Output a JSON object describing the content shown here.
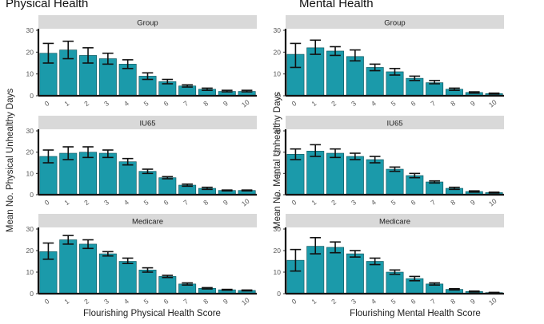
{
  "figure": {
    "left_title": "Physical Health",
    "right_title": "Mental Health",
    "left_ylabel": "Mean No. Physical Unhealthy Days",
    "right_ylabel": "Mean No. Mental Unhealthy Days",
    "left_xlabel": "Flourishing Physical Health Score",
    "right_xlabel": "Flourishing Mental Health Score",
    "bar_color": "#1b9aaa",
    "strip_color": "#d9d9d9"
  },
  "chart_data": [
    {
      "type": "bar",
      "column": "Physical Health",
      "facet": "Group",
      "categories": [
        "0",
        "1",
        "2",
        "3",
        "4",
        "5",
        "6",
        "7",
        "8",
        "9",
        "10"
      ],
      "values": [
        19.5,
        21,
        18.5,
        17,
        14.5,
        9,
        6.5,
        4.5,
        3,
        2,
        2
      ],
      "error_low": [
        15,
        17,
        15,
        14.5,
        12.5,
        7.5,
        5.5,
        4,
        2.5,
        1.8,
        1.8
      ],
      "error_high": [
        24,
        25,
        22,
        19.5,
        16.5,
        10.5,
        7.5,
        5,
        3.5,
        2.5,
        2.5
      ],
      "ylim": [
        0,
        30
      ],
      "yticks": [
        0,
        10,
        20,
        30
      ],
      "xlabel": "Flourishing Physical Health Score",
      "ylabel": "Mean No. Physical Unhealthy Days"
    },
    {
      "type": "bar",
      "column": "Physical Health",
      "facet": "IU65",
      "categories": [
        "0",
        "1",
        "2",
        "3",
        "4",
        "5",
        "6",
        "7",
        "8",
        "9",
        "10"
      ],
      "values": [
        18,
        19.5,
        20,
        19.5,
        15.5,
        11,
        8,
        4.5,
        3,
        2,
        2
      ],
      "error_low": [
        15,
        16.5,
        17.5,
        17.5,
        14,
        10,
        7.5,
        4,
        2.5,
        1.8,
        1.8
      ],
      "error_high": [
        21,
        22.5,
        22.5,
        21,
        17,
        12,
        8.5,
        5,
        3.5,
        2.2,
        2.2
      ],
      "ylim": [
        0,
        30
      ],
      "yticks": [
        0,
        10,
        20,
        30
      ],
      "xlabel": "Flourishing Physical Health Score",
      "ylabel": "Mean No. Physical Unhealthy Days"
    },
    {
      "type": "bar",
      "column": "Physical Health",
      "facet": "Medicare",
      "categories": [
        "0",
        "1",
        "2",
        "3",
        "4",
        "5",
        "6",
        "7",
        "8",
        "9",
        "10"
      ],
      "values": [
        19.5,
        25,
        23,
        18.5,
        15,
        11,
        8,
        4.5,
        2.5,
        1.8,
        1.5
      ],
      "error_low": [
        16,
        23,
        21,
        17.5,
        14,
        10,
        7.5,
        4,
        2.2,
        1.6,
        1.3
      ],
      "error_high": [
        23.5,
        27,
        25,
        19.5,
        16.5,
        12,
        8.5,
        5,
        2.8,
        2,
        1.7
      ],
      "ylim": [
        0,
        30
      ],
      "yticks": [
        0,
        10,
        20,
        30
      ],
      "xlabel": "Flourishing Physical Health Score",
      "ylabel": "Mean No. Physical Unhealthy Days"
    },
    {
      "type": "bar",
      "column": "Mental Health",
      "facet": "Group",
      "categories": [
        "0",
        "1",
        "2",
        "3",
        "4",
        "5",
        "6",
        "7",
        "8",
        "9",
        "10"
      ],
      "values": [
        19,
        22,
        20.5,
        18,
        13,
        11,
        8,
        6,
        3,
        1.5,
        1
      ],
      "error_low": [
        13,
        19,
        18.5,
        16,
        11.5,
        9.5,
        7,
        5.5,
        2.5,
        1.2,
        0.8
      ],
      "error_high": [
        24,
        25.5,
        22.5,
        21,
        14.5,
        12.5,
        9,
        7,
        3.5,
        1.8,
        1.2
      ],
      "ylim": [
        0,
        30
      ],
      "yticks": [
        0,
        10,
        20,
        30
      ],
      "xlabel": "Flourishing Mental Health Score",
      "ylabel": "Mean No. Mental Unhealthy Days"
    },
    {
      "type": "bar",
      "column": "Mental Health",
      "facet": "IU65",
      "categories": [
        "0",
        "1",
        "2",
        "3",
        "4",
        "5",
        "6",
        "7",
        "8",
        "9",
        "10"
      ],
      "values": [
        19,
        20.5,
        19.5,
        18,
        16.5,
        12,
        9,
        6,
        3,
        1.5,
        1
      ],
      "error_low": [
        16.5,
        18,
        17.5,
        16.5,
        15,
        11,
        8,
        5.5,
        2.5,
        1.2,
        0.8
      ],
      "error_high": [
        21.5,
        23.5,
        21.5,
        19.5,
        18,
        13,
        10,
        6.5,
        3.5,
        1.8,
        1.2
      ],
      "ylim": [
        0,
        30
      ],
      "yticks": [
        0,
        10,
        20,
        30
      ],
      "xlabel": "Flourishing Mental Health Score",
      "ylabel": "Mean No. Mental Unhealthy Days"
    },
    {
      "type": "bar",
      "column": "Mental Health",
      "facet": "Medicare",
      "categories": [
        "0",
        "1",
        "2",
        "3",
        "4",
        "5",
        "6",
        "7",
        "8",
        "9",
        "10"
      ],
      "values": [
        15.5,
        22,
        21.5,
        18.5,
        15,
        10,
        7,
        4.5,
        2,
        1,
        0.5
      ],
      "error_low": [
        10.5,
        18.5,
        19,
        17,
        13.5,
        9,
        6,
        4,
        1.7,
        0.8,
        0.4
      ],
      "error_high": [
        20.5,
        26,
        24,
        20,
        16.5,
        11,
        8,
        5,
        2.3,
        1.2,
        0.6
      ],
      "ylim": [
        0,
        30
      ],
      "yticks": [
        0,
        10,
        20,
        30
      ],
      "xlabel": "Flourishing Mental Health Score",
      "ylabel": "Mean No. Mental Unhealthy Days"
    }
  ]
}
